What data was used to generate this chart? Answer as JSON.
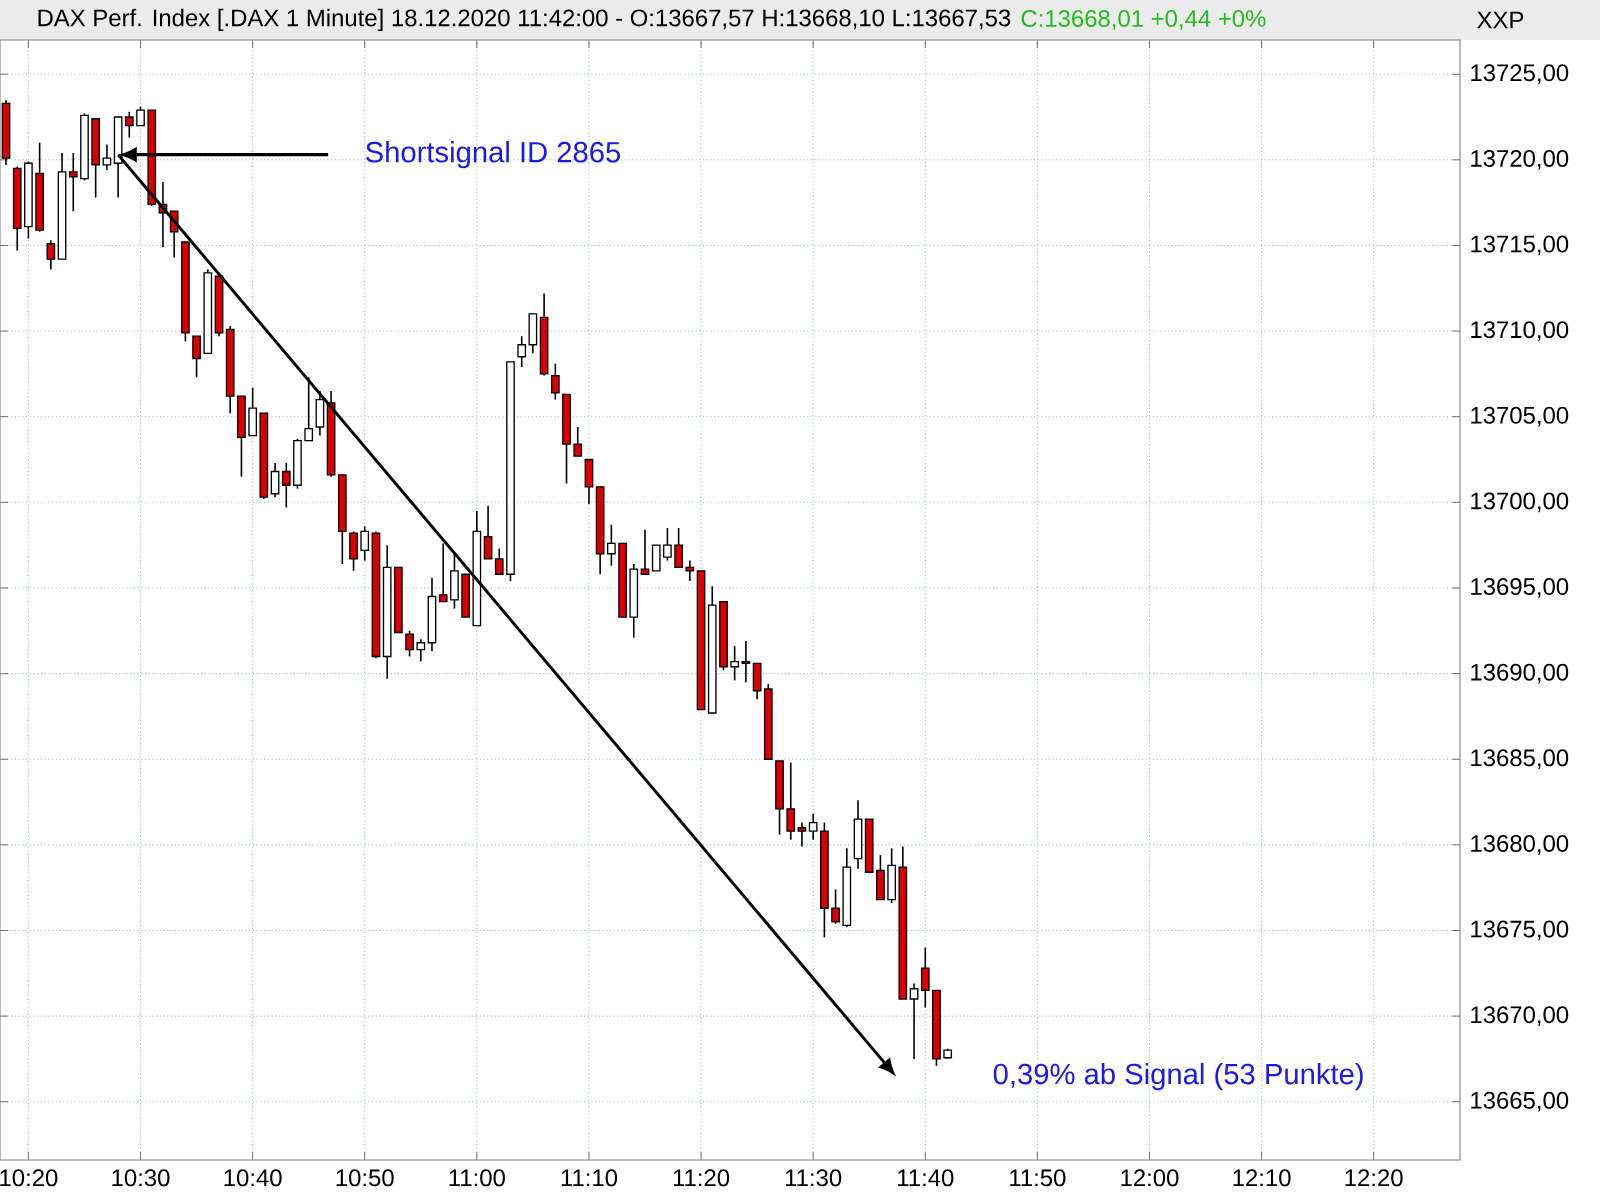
{
  "chart_data": {
    "type": "candlestick",
    "title": "DAX Perf. Index [.DAX  1 Minute] 18.12.2020 11:42:00 - O:13667,57 H:13668,10 L:13667,53",
    "subtitle": "C:13668,01 +0,44 +0%",
    "x": [
      10.3,
      10.3167,
      10.3333,
      10.35,
      10.3667,
      10.3833,
      10.4,
      10.4167,
      10.4333,
      10.45,
      10.4667,
      10.4833,
      10.5,
      10.5167,
      10.5333,
      10.55,
      10.5667,
      10.5833,
      10.6,
      10.6167,
      10.6333,
      10.65,
      10.6667,
      10.6833,
      10.7,
      10.7167,
      10.7333,
      10.75,
      10.7667,
      10.7833,
      10.8,
      10.8167,
      10.8333,
      10.85,
      10.8667,
      10.8833,
      10.9,
      10.9167,
      10.9333,
      10.95,
      10.9667,
      10.9833,
      11,
      11.0167,
      11.0333,
      11.05,
      11.0667,
      11.0833,
      11.1,
      11.1167,
      11.1333,
      11.15,
      11.1667,
      11.1833,
      11.2,
      11.2167,
      11.2333,
      11.25,
      11.2667,
      11.2833,
      11.3,
      11.3167,
      11.3333,
      11.35,
      11.3667,
      11.3833,
      11.4,
      11.4167,
      11.4333,
      11.45,
      11.4667,
      11.4833,
      11.5,
      11.5167,
      11.5333,
      11.55,
      11.5667,
      11.5833,
      11.6,
      11.6167,
      11.6333,
      11.65,
      11.6667,
      11.6833,
      11.7
    ],
    "ohlc": [
      [
        13723.3,
        13723.5,
        13719.7,
        13720.1
      ],
      [
        13719.5,
        13719.6,
        13714.7,
        13716.0
      ],
      [
        13716.1,
        13719.9,
        13715.4,
        13719.8
      ],
      [
        13719.2,
        13721.0,
        13715.8,
        13715.9
      ],
      [
        13715.1,
        13715.3,
        13713.6,
        13714.2
      ],
      [
        13714.2,
        13720.4,
        13714.2,
        13719.3
      ],
      [
        13719.3,
        13720.4,
        13717.0,
        13719.0
      ],
      [
        13718.9,
        13722.7,
        13718.8,
        13722.6
      ],
      [
        13722.4,
        13722.4,
        13717.8,
        13719.7
      ],
      [
        13719.7,
        13720.9,
        13719.4,
        13720.1
      ],
      [
        13719.8,
        13722.5,
        13717.8,
        13722.5
      ],
      [
        13722.5,
        13722.8,
        13721.3,
        13722.0
      ],
      [
        13722.0,
        13723.1,
        13722.0,
        13722.9
      ],
      [
        13722.9,
        13722.9,
        13717.3,
        13717.4
      ],
      [
        13717.4,
        13718.7,
        13714.9,
        13716.9
      ],
      [
        13717.0,
        13717.0,
        13714.3,
        13715.8
      ],
      [
        13715.2,
        13715.2,
        13709.4,
        13709.9
      ],
      [
        13709.7,
        13709.7,
        13707.3,
        13708.4
      ],
      [
        13708.7,
        13713.6,
        13708.7,
        13713.4
      ],
      [
        13713.2,
        13713.4,
        13709.7,
        13709.9
      ],
      [
        13710.1,
        13710.3,
        13705.2,
        13706.2
      ],
      [
        13706.2,
        13706.2,
        13701.5,
        13703.8
      ],
      [
        13703.9,
        13706.7,
        13703.9,
        13705.5
      ],
      [
        13705.2,
        13705.2,
        13700.2,
        13700.3
      ],
      [
        13700.5,
        13702.3,
        13700.3,
        13701.8
      ],
      [
        13701.8,
        13702.3,
        13699.7,
        13701.0
      ],
      [
        13701.0,
        13703.7,
        13700.8,
        13703.6
      ],
      [
        13703.6,
        13707.3,
        13703.6,
        13704.3
      ],
      [
        13704.4,
        13706.5,
        13703.9,
        13706.0
      ],
      [
        13705.8,
        13706.5,
        13701.5,
        13701.6
      ],
      [
        13701.6,
        13701.6,
        13696.4,
        13698.3
      ],
      [
        13698.2,
        13698.3,
        13696.0,
        13696.7
      ],
      [
        13697.2,
        13698.6,
        13696.6,
        13698.3
      ],
      [
        13698.2,
        13698.3,
        13690.9,
        13691.0
      ],
      [
        13691.0,
        13697.5,
        13689.7,
        13696.2
      ],
      [
        13696.2,
        13696.2,
        13692.4,
        13692.4
      ],
      [
        13692.3,
        13692.5,
        13691.0,
        13691.4
      ],
      [
        13691.4,
        13692.0,
        13690.7,
        13691.8
      ],
      [
        13691.8,
        13695.6,
        13691.3,
        13694.5
      ],
      [
        13694.6,
        13697.6,
        13694.2,
        13694.2
      ],
      [
        13694.3,
        13697.0,
        13693.8,
        13696.0
      ],
      [
        13695.8,
        13695.8,
        13693.3,
        13693.3
      ],
      [
        13692.8,
        13699.5,
        13692.8,
        13698.3
      ],
      [
        13698.0,
        13699.8,
        13696.7,
        13696.7
      ],
      [
        13696.7,
        13697.3,
        13695.8,
        13695.8
      ],
      [
        13695.8,
        13708.2,
        13695.4,
        13708.2
      ],
      [
        13708.5,
        13709.7,
        13707.9,
        13709.2
      ],
      [
        13709.2,
        13711.0,
        13708.7,
        13711.0
      ],
      [
        13710.8,
        13712.2,
        13707.4,
        13707.5
      ],
      [
        13707.4,
        13708.1,
        13706.0,
        13706.4
      ],
      [
        13706.3,
        13706.3,
        13701.1,
        13703.4
      ],
      [
        13703.4,
        13704.4,
        13702.7,
        13702.7
      ],
      [
        13702.5,
        13702.5,
        13699.9,
        13700.9
      ],
      [
        13700.9,
        13700.9,
        13695.8,
        13697.0
      ],
      [
        13697.0,
        13698.7,
        13696.3,
        13697.6
      ],
      [
        13697.6,
        13697.6,
        13693.3,
        13693.3
      ],
      [
        13693.3,
        13696.4,
        13692.1,
        13696.1
      ],
      [
        13696.1,
        13698.4,
        13695.8,
        13695.8
      ],
      [
        13696.0,
        13697.5,
        13696.0,
        13697.5
      ],
      [
        13696.8,
        13698.5,
        13696.6,
        13697.5
      ],
      [
        13697.5,
        13698.5,
        13696.2,
        13696.2
      ],
      [
        13696.2,
        13696.6,
        13695.4,
        13696.0
      ],
      [
        13696.0,
        13696.0,
        13687.9,
        13687.9
      ],
      [
        13687.7,
        13695.1,
        13687.7,
        13694.0
      ],
      [
        13694.2,
        13694.2,
        13690.2,
        13690.4
      ],
      [
        13690.4,
        13691.6,
        13689.6,
        13690.7
      ],
      [
        13690.7,
        13691.9,
        13689.5,
        13690.6
      ],
      [
        13690.6,
        13690.6,
        13688.5,
        13689.0
      ],
      [
        13689.1,
        13689.4,
        13685.0,
        13685.0
      ],
      [
        13684.9,
        13684.9,
        13680.6,
        13682.1
      ],
      [
        13682.1,
        13684.8,
        13680.3,
        13680.8
      ],
      [
        13681.0,
        13681.3,
        13679.9,
        13680.8
      ],
      [
        13680.8,
        13681.8,
        13680.3,
        13681.3
      ],
      [
        13680.8,
        13681.3,
        13674.6,
        13676.3
      ],
      [
        13676.3,
        13677.4,
        13675.4,
        13675.5
      ],
      [
        13675.3,
        13679.8,
        13675.2,
        13678.7
      ],
      [
        13679.2,
        13682.6,
        13678.6,
        13681.5
      ],
      [
        13681.5,
        13681.5,
        13678.4,
        13678.4
      ],
      [
        13678.5,
        13679.4,
        13676.8,
        13676.8
      ],
      [
        13676.8,
        13679.8,
        13676.6,
        13678.8
      ],
      [
        13678.7,
        13679.9,
        13671.0,
        13671.0
      ],
      [
        13671.0,
        13671.9,
        13667.5,
        13671.6
      ],
      [
        13672.8,
        13674.0,
        13670.5,
        13671.5
      ],
      [
        13671.5,
        13671.5,
        13667.1,
        13667.5
      ],
      [
        13667.57,
        13668.1,
        13667.53,
        13668.01
      ]
    ],
    "xlim": [
      10.2911,
      12.4617
    ],
    "xticks": [
      {
        "value": 10.3333,
        "label": "10:20"
      },
      {
        "value": 10.5,
        "label": "10:30"
      },
      {
        "value": 10.6667,
        "label": "10:40"
      },
      {
        "value": 10.8333,
        "label": "10:50"
      },
      {
        "value": 11,
        "label": "11:00"
      },
      {
        "value": 11.1667,
        "label": "11:10"
      },
      {
        "value": 11.3333,
        "label": "11:20"
      },
      {
        "value": 11.5,
        "label": "11:30"
      },
      {
        "value": 11.6667,
        "label": "11:40"
      },
      {
        "value": 11.8333,
        "label": "11:50"
      },
      {
        "value": 12,
        "label": "12:00"
      },
      {
        "value": 12.1667,
        "label": "12:10"
      },
      {
        "value": 12.3333,
        "label": "12:20"
      }
    ],
    "ylim": [
      13661.6,
      13727
    ],
    "yticks": [
      {
        "value": 13665,
        "label": "13665,00"
      },
      {
        "value": 13670,
        "label": "13670,00"
      },
      {
        "value": 13675,
        "label": "13675,00"
      },
      {
        "value": 13680,
        "label": "13680,00"
      },
      {
        "value": 13685,
        "label": "13685,00"
      },
      {
        "value": 13690,
        "label": "13690,00"
      },
      {
        "value": 13695,
        "label": "13695,00"
      },
      {
        "value": 13700,
        "label": "13700,00"
      },
      {
        "value": 13705,
        "label": "13705,00"
      },
      {
        "value": 13710,
        "label": "13710,00"
      },
      {
        "value": 13715,
        "label": "13715,00"
      },
      {
        "value": 13720,
        "label": "13720,00"
      },
      {
        "value": 13725,
        "label": "13725,00"
      }
    ],
    "grid": true,
    "annotations": [
      {
        "text": "Shortsignal ID 2865",
        "x": 10.4667,
        "y": 13720.3
      },
      "0,39% ab Signal (53 Punkte)",
      "XXP"
    ]
  }
}
